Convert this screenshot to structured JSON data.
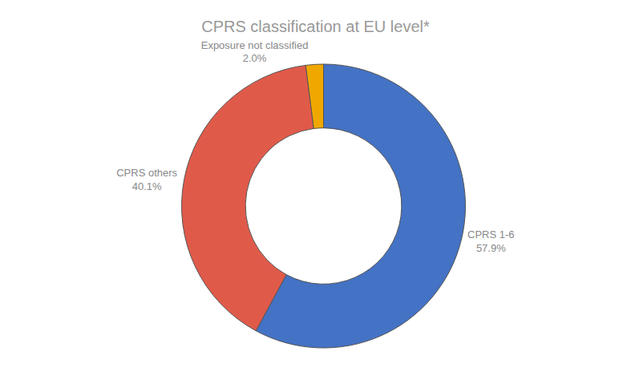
{
  "chart_data": {
    "type": "donut",
    "title": "CPRS classification at EU level*",
    "categories": [
      "CPRS 1-6",
      "CPRS others",
      "Exposure not classified"
    ],
    "values": [
      57.9,
      40.1,
      2.0
    ],
    "value_labels": [
      "57.9%",
      "40.1%",
      "2.0%"
    ],
    "colors": [
      "#4472C4",
      "#E05A4A",
      "#F0A800"
    ],
    "data_labels": true
  }
}
